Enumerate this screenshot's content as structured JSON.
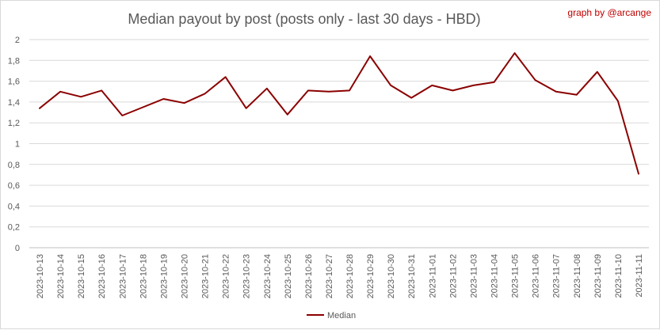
{
  "chart_data": {
    "type": "line",
    "title": "Median payout by post (posts only - last 30 days - HBD)",
    "credit": "graph by @arcange",
    "xlabel": "",
    "ylabel": "",
    "ylim": [
      0,
      2
    ],
    "yticks": [
      "0",
      "0,2",
      "0,4",
      "0,6",
      "0,8",
      "1",
      "1,2",
      "1,4",
      "1,6",
      "1,8",
      "2"
    ],
    "grid": true,
    "legend_position": "bottom",
    "categories": [
      "2023-10-13",
      "2023-10-14",
      "2023-10-15",
      "2023-10-16",
      "2023-10-17",
      "2023-10-18",
      "2023-10-19",
      "2023-10-20",
      "2023-10-21",
      "2023-10-22",
      "2023-10-23",
      "2023-10-24",
      "2023-10-25",
      "2023-10-26",
      "2023-10-27",
      "2023-10-28",
      "2023-10-29",
      "2023-10-30",
      "2023-10-31",
      "2023-11-01",
      "2023-11-02",
      "2023-11-03",
      "2023-11-04",
      "2023-11-05",
      "2023-11-06",
      "2023-11-07",
      "2023-11-08",
      "2023-11-09",
      "2023-11-10",
      "2023-11-11"
    ],
    "series": [
      {
        "name": "Median",
        "color": "#8b0000",
        "values": [
          1.34,
          1.5,
          1.45,
          1.51,
          1.27,
          1.35,
          1.43,
          1.39,
          1.48,
          1.64,
          1.34,
          1.53,
          1.28,
          1.51,
          1.5,
          1.51,
          1.84,
          1.56,
          1.44,
          1.56,
          1.51,
          1.56,
          1.59,
          1.87,
          1.61,
          1.5,
          1.47,
          1.69,
          1.41,
          0.71
        ]
      }
    ]
  }
}
